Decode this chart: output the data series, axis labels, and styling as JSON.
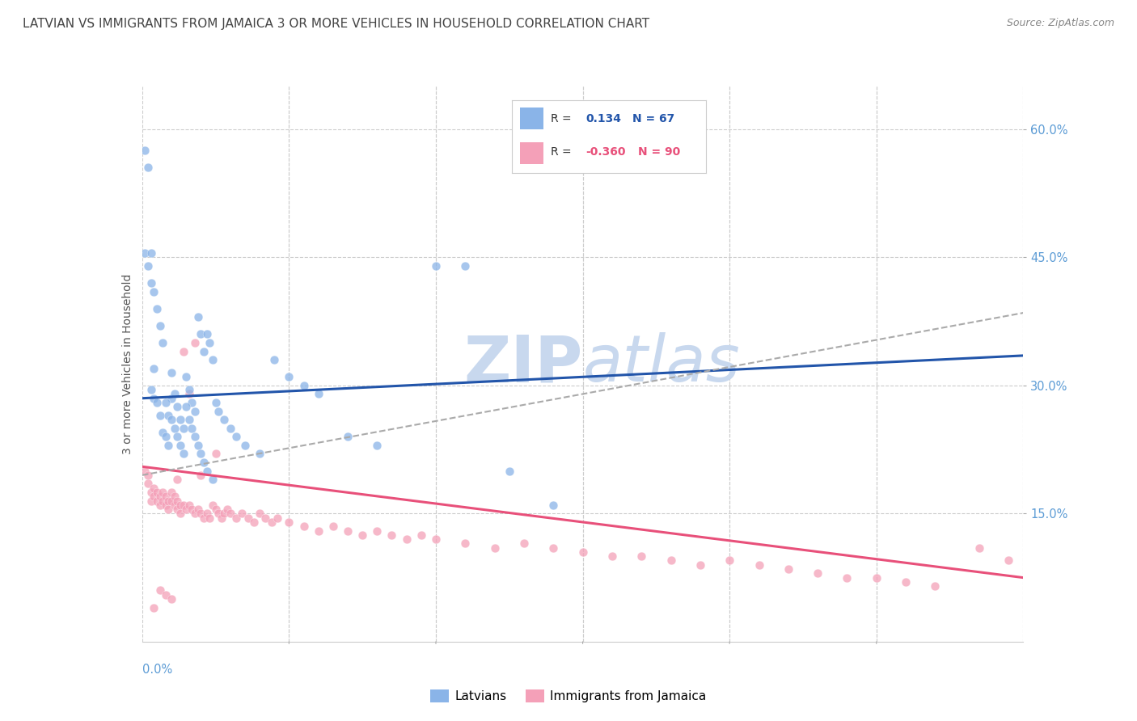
{
  "title": "LATVIAN VS IMMIGRANTS FROM JAMAICA 3 OR MORE VEHICLES IN HOUSEHOLD CORRELATION CHART",
  "source": "Source: ZipAtlas.com",
  "ylabel": "3 or more Vehicles in Household",
  "ytick_vals": [
    0.15,
    0.3,
    0.45,
    0.6
  ],
  "ytick_labels": [
    "15.0%",
    "30.0%",
    "45.0%",
    "60.0%"
  ],
  "xlim": [
    0.0,
    0.3
  ],
  "ylim": [
    0.0,
    0.65
  ],
  "latvian_R": "0.134",
  "latvian_N": "67",
  "jamaica_R": "-0.360",
  "jamaica_N": "90",
  "latvian_color": "#8ab4e8",
  "jamaica_color": "#f4a0b8",
  "latvian_line_color": "#2255aa",
  "jamaica_line_color": "#e8507a",
  "dashed_line_color": "#aaaaaa",
  "background_color": "#ffffff",
  "watermark_color": "#c8d8ee",
  "latvian_line": [
    0.0,
    0.285,
    0.3,
    0.335
  ],
  "jamaica_line": [
    0.0,
    0.205,
    0.3,
    0.075
  ],
  "dashed_line": [
    0.0,
    0.195,
    0.3,
    0.385
  ],
  "latvian_x": [
    0.001,
    0.002,
    0.003,
    0.004,
    0.004,
    0.005,
    0.006,
    0.007,
    0.008,
    0.009,
    0.01,
    0.01,
    0.011,
    0.012,
    0.013,
    0.014,
    0.015,
    0.016,
    0.017,
    0.018,
    0.019,
    0.02,
    0.021,
    0.022,
    0.023,
    0.024,
    0.001,
    0.002,
    0.003,
    0.003,
    0.004,
    0.005,
    0.006,
    0.007,
    0.008,
    0.009,
    0.01,
    0.011,
    0.012,
    0.013,
    0.014,
    0.015,
    0.016,
    0.017,
    0.018,
    0.019,
    0.02,
    0.021,
    0.022,
    0.024,
    0.025,
    0.026,
    0.028,
    0.03,
    0.032,
    0.035,
    0.04,
    0.045,
    0.05,
    0.055,
    0.06,
    0.07,
    0.08,
    0.1,
    0.11,
    0.125,
    0.14
  ],
  "latvian_y": [
    0.575,
    0.555,
    0.295,
    0.285,
    0.32,
    0.28,
    0.265,
    0.245,
    0.24,
    0.23,
    0.285,
    0.315,
    0.29,
    0.275,
    0.26,
    0.25,
    0.31,
    0.295,
    0.28,
    0.27,
    0.38,
    0.36,
    0.34,
    0.36,
    0.35,
    0.33,
    0.455,
    0.44,
    0.42,
    0.455,
    0.41,
    0.39,
    0.37,
    0.35,
    0.28,
    0.265,
    0.26,
    0.25,
    0.24,
    0.23,
    0.22,
    0.275,
    0.26,
    0.25,
    0.24,
    0.23,
    0.22,
    0.21,
    0.2,
    0.19,
    0.28,
    0.27,
    0.26,
    0.25,
    0.24,
    0.23,
    0.22,
    0.33,
    0.31,
    0.3,
    0.29,
    0.24,
    0.23,
    0.44,
    0.44,
    0.2,
    0.16
  ],
  "jamaica_x": [
    0.001,
    0.002,
    0.002,
    0.003,
    0.003,
    0.004,
    0.004,
    0.005,
    0.005,
    0.006,
    0.006,
    0.007,
    0.007,
    0.008,
    0.008,
    0.009,
    0.009,
    0.01,
    0.01,
    0.011,
    0.011,
    0.012,
    0.012,
    0.013,
    0.013,
    0.014,
    0.015,
    0.016,
    0.017,
    0.018,
    0.019,
    0.02,
    0.021,
    0.022,
    0.023,
    0.024,
    0.025,
    0.026,
    0.027,
    0.028,
    0.029,
    0.03,
    0.032,
    0.034,
    0.036,
    0.038,
    0.04,
    0.042,
    0.044,
    0.046,
    0.05,
    0.055,
    0.06,
    0.065,
    0.07,
    0.075,
    0.08,
    0.085,
    0.09,
    0.095,
    0.1,
    0.11,
    0.12,
    0.13,
    0.14,
    0.15,
    0.16,
    0.17,
    0.18,
    0.19,
    0.2,
    0.21,
    0.22,
    0.23,
    0.24,
    0.25,
    0.26,
    0.27,
    0.285,
    0.295,
    0.004,
    0.006,
    0.008,
    0.01,
    0.012,
    0.014,
    0.016,
    0.018,
    0.02,
    0.025
  ],
  "jamaica_y": [
    0.2,
    0.185,
    0.195,
    0.175,
    0.165,
    0.18,
    0.17,
    0.175,
    0.165,
    0.17,
    0.16,
    0.175,
    0.165,
    0.17,
    0.16,
    0.165,
    0.155,
    0.175,
    0.165,
    0.17,
    0.16,
    0.165,
    0.155,
    0.16,
    0.15,
    0.16,
    0.155,
    0.16,
    0.155,
    0.15,
    0.155,
    0.15,
    0.145,
    0.15,
    0.145,
    0.16,
    0.155,
    0.15,
    0.145,
    0.15,
    0.155,
    0.15,
    0.145,
    0.15,
    0.145,
    0.14,
    0.15,
    0.145,
    0.14,
    0.145,
    0.14,
    0.135,
    0.13,
    0.135,
    0.13,
    0.125,
    0.13,
    0.125,
    0.12,
    0.125,
    0.12,
    0.115,
    0.11,
    0.115,
    0.11,
    0.105,
    0.1,
    0.1,
    0.095,
    0.09,
    0.095,
    0.09,
    0.085,
    0.08,
    0.075,
    0.075,
    0.07,
    0.065,
    0.11,
    0.095,
    0.04,
    0.06,
    0.055,
    0.05,
    0.19,
    0.34,
    0.29,
    0.35,
    0.195,
    0.22
  ]
}
